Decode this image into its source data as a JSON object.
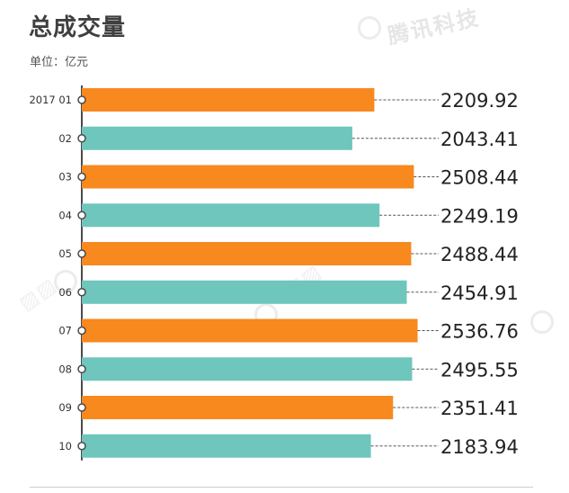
{
  "header": {
    "title": "总成交量",
    "subtitle": "单位：亿元",
    "watermark": "腾讯科技"
  },
  "colors": {
    "odd": "#f7891f",
    "even": "#6ec6bd",
    "axis": "#4a4a4a",
    "leader": "#555555",
    "value_text": "#222222",
    "label_text": "#333333"
  },
  "chart_data": {
    "type": "bar",
    "orientation": "horizontal",
    "categories": [
      "2017 01",
      "02",
      "03",
      "04",
      "05",
      "06",
      "07",
      "08",
      "09",
      "10"
    ],
    "values": [
      2209.92,
      2043.41,
      2508.44,
      2249.19,
      2488.44,
      2454.91,
      2536.76,
      2495.55,
      2351.41,
      2183.94
    ],
    "value_labels": [
      "2209.92",
      "2043.41",
      "2508.44",
      "2249.19",
      "2488.44",
      "2454.91",
      "2536.76",
      "2495.55",
      "2351.41",
      "2183.94"
    ],
    "title": "总成交量",
    "unit": "单位：亿元",
    "xlim": [
      0,
      2560
    ]
  }
}
